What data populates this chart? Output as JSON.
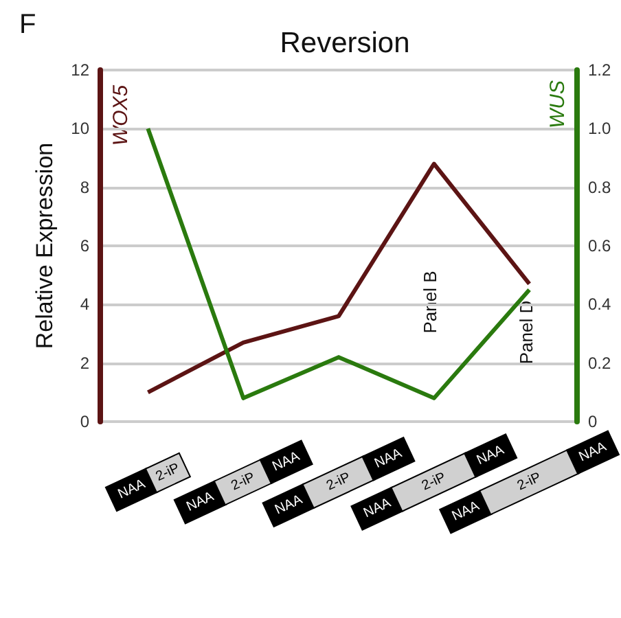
{
  "chart_data": {
    "type": "line",
    "title": "Reversion",
    "ylabel": "Relative Expression",
    "categories": [
      "NAA 2-iP",
      "NAA 2-iP NAA",
      "NAA 2-iP NAA",
      "NAA 2-iP NAA",
      "NAA 2-iP NAA"
    ],
    "series": [
      {
        "name": "WOX5",
        "color": "#5c1414",
        "values": [
          1.0,
          2.7,
          3.6,
          8.8,
          4.7
        ]
      },
      {
        "name": "WUS",
        "color": "#2a7a0e",
        "axis": "y2",
        "values": [
          1.0,
          0.08,
          0.22,
          0.08,
          0.45
        ]
      }
    ],
    "ylim": [
      0,
      12
    ],
    "yticks": [
      0,
      2,
      4,
      6,
      8,
      10,
      12
    ],
    "y2lim": [
      0,
      1.2
    ],
    "y2ticks": [
      0,
      {
        "value": 0.2,
        "label": "0.2"
      },
      {
        "value": 0.4,
        "label": "0.4"
      },
      {
        "value": 0.6,
        "label": "0.6"
      },
      {
        "value": 0.8,
        "label": "0.8"
      },
      {
        "value": 1,
        "label": "1.0"
      },
      {
        "value": 1.2,
        "label": "1.2"
      }
    ],
    "annotations": [
      "F",
      "Panel B",
      "Panel D"
    ],
    "grid": "y",
    "legend": false,
    "marker": "none",
    "line_style": "solid"
  }
}
